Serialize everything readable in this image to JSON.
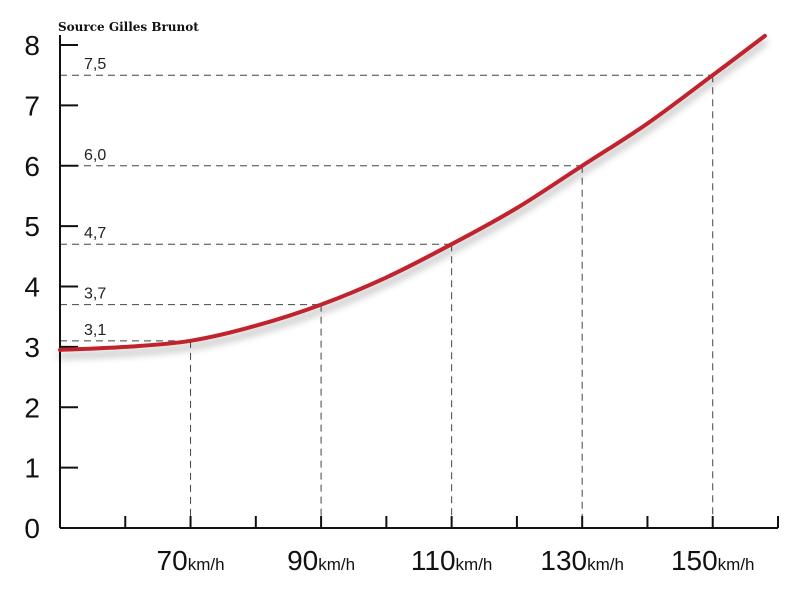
{
  "source_note": "Source Gilles Brunot",
  "colors": {
    "curve": "#c0232e",
    "axis": "#111111",
    "guide": "#444444"
  },
  "chart_data": {
    "type": "line",
    "title": "",
    "xlabel": "",
    "ylabel": "",
    "ylim": [
      0,
      8
    ],
    "yticks": [
      0,
      1,
      2,
      3,
      4,
      5,
      6,
      7,
      8
    ],
    "xlim": [
      50,
      160
    ],
    "xticks": [
      {
        "value": 70,
        "num": "70",
        "unit": "km/h"
      },
      {
        "value": 90,
        "num": "90",
        "unit": "km/h"
      },
      {
        "value": 110,
        "num": "110",
        "unit": "km/h"
      },
      {
        "value": 130,
        "num": "130",
        "unit": "km/h"
      },
      {
        "value": 150,
        "num": "150",
        "unit": "km/h"
      }
    ],
    "series": [
      {
        "x": [
          50,
          60,
          70,
          80,
          90,
          100,
          110,
          120,
          130,
          140,
          150,
          158
        ],
        "y": [
          2.95,
          3.0,
          3.1,
          3.35,
          3.7,
          4.15,
          4.7,
          5.3,
          6.0,
          6.7,
          7.5,
          8.15
        ]
      }
    ],
    "labeled_points": [
      {
        "x": 70,
        "y": 3.1,
        "label": "3,1"
      },
      {
        "x": 90,
        "y": 3.7,
        "label": "3,7"
      },
      {
        "x": 110,
        "y": 4.7,
        "label": "4,7"
      },
      {
        "x": 130,
        "y": 6.0,
        "label": "6,0"
      },
      {
        "x": 150,
        "y": 7.5,
        "label": "7,5"
      }
    ],
    "grid": false,
    "legend": "none"
  }
}
